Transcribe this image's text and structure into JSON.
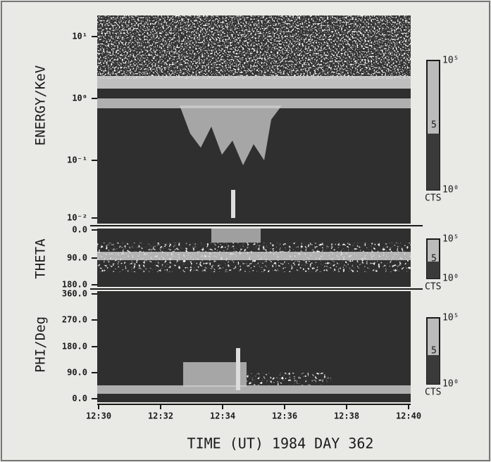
{
  "panels": [
    {
      "label": "ENERGY/KeV",
      "ticks": [
        "10¹",
        "10⁰",
        "10⁻¹",
        "10⁻²"
      ],
      "colorbar": [
        "10⁵",
        "5",
        "10⁰",
        "CTS"
      ]
    },
    {
      "label": "THETA",
      "ticks": [
        "0.0",
        "90.0",
        "180.0"
      ],
      "colorbar": [
        "10⁵",
        "5",
        "10⁰",
        "CTS"
      ]
    },
    {
      "label": "PHI/Deg",
      "ticks": [
        "360.0",
        "270.0",
        "180.0",
        "90.0",
        "0.0"
      ],
      "colorbar": [
        "10⁵",
        "5",
        "10⁰",
        "CTS"
      ]
    }
  ],
  "x_axis": {
    "ticks": [
      "12:30",
      "12:32",
      "12:34",
      "12:36",
      "12:38",
      "12:40"
    ],
    "label": "TIME (UT) 1984 DAY 362"
  }
}
